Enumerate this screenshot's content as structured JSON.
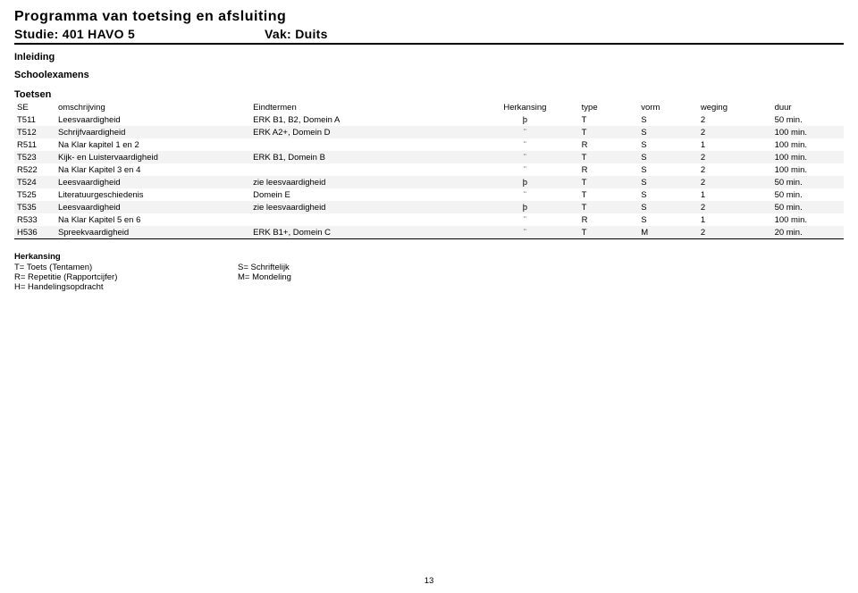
{
  "header": {
    "title": "Programma van toetsing en afsluiting",
    "study": "Studie: 401 HAVO 5",
    "vak": "Vak: Duits"
  },
  "labels": {
    "inleiding": "Inleiding",
    "schoolexamens": "Schoolexamens",
    "toetsen": "Toetsen"
  },
  "columns": {
    "se": "SE",
    "omsch": "omschrijving",
    "eind": "Eindtermen",
    "herk": "Herkansing",
    "type": "type",
    "vorm": "vorm",
    "weging": "weging",
    "duur": "duur"
  },
  "rows": [
    {
      "se": "T511",
      "omsch": "Leesvaardigheid",
      "eind": "ERK B1, B2, Domein A",
      "herk": "þ",
      "type": "T",
      "vorm": "S",
      "weging": "2",
      "duur": "50 min.",
      "shaded": false
    },
    {
      "se": "T512",
      "omsch": "Schrijfvaardigheid",
      "eind": "ERK A2+, Domein D",
      "herk": "¨",
      "type": "T",
      "vorm": "S",
      "weging": "2",
      "duur": "100 min.",
      "shaded": true
    },
    {
      "se": "R511",
      "omsch": "Na Klar kapitel 1 en 2",
      "eind": "",
      "herk": "¨",
      "type": "R",
      "vorm": "S",
      "weging": "1",
      "duur": "100 min.",
      "shaded": false
    },
    {
      "se": "T523",
      "omsch": "Kijk- en Luistervaardigheid",
      "eind": "ERK B1, Domein B",
      "herk": "¨",
      "type": "T",
      "vorm": "S",
      "weging": "2",
      "duur": "100 min.",
      "shaded": true
    },
    {
      "se": "R522",
      "omsch": "Na Klar Kapitel 3 en 4",
      "eind": "",
      "herk": "¨",
      "type": "R",
      "vorm": "S",
      "weging": "2",
      "duur": "100 min.",
      "shaded": false
    },
    {
      "se": "T524",
      "omsch": "Leesvaardigheid",
      "eind": "zie leesvaardigheid",
      "herk": "þ",
      "type": "T",
      "vorm": "S",
      "weging": "2",
      "duur": "50 min.",
      "shaded": true
    },
    {
      "se": "T525",
      "omsch": "Literatuurgeschiedenis",
      "eind": "Domein E",
      "herk": "¨",
      "type": "T",
      "vorm": "S",
      "weging": "1",
      "duur": "50 min.",
      "shaded": false
    },
    {
      "se": "T535",
      "omsch": "Leesvaardigheid",
      "eind": "zie leesvaardigheid",
      "herk": "þ",
      "type": "T",
      "vorm": "S",
      "weging": "2",
      "duur": "50 min.",
      "shaded": true
    },
    {
      "se": "R533",
      "omsch": "Na Klar Kapitel 5 en 6",
      "eind": "",
      "herk": "¨",
      "type": "R",
      "vorm": "S",
      "weging": "1",
      "duur": "100 min.",
      "shaded": false
    },
    {
      "se": "H536",
      "omsch": "Spreekvaardigheid",
      "eind": "ERK B1+, Domein C",
      "herk": "¨",
      "type": "T",
      "vorm": "M",
      "weging": "2",
      "duur": "20 min.",
      "shaded": true
    }
  ],
  "legend": {
    "title": "Herkansing",
    "t": "T= Toets (Tentamen)",
    "r": "R= Repetitie (Rapportcijfer)",
    "h": "H= Handelingsopdracht",
    "s": "S= Schriftelijk",
    "m": "M= Mondeling"
  },
  "page_number": "13",
  "style": {
    "bg": "#ffffff",
    "text": "#000000",
    "shaded_bg": "#f3f3f3",
    "border": "#000000",
    "title_fontsize": 16,
    "subtitle_fontsize": 14,
    "body_fontsize": 9.5
  }
}
